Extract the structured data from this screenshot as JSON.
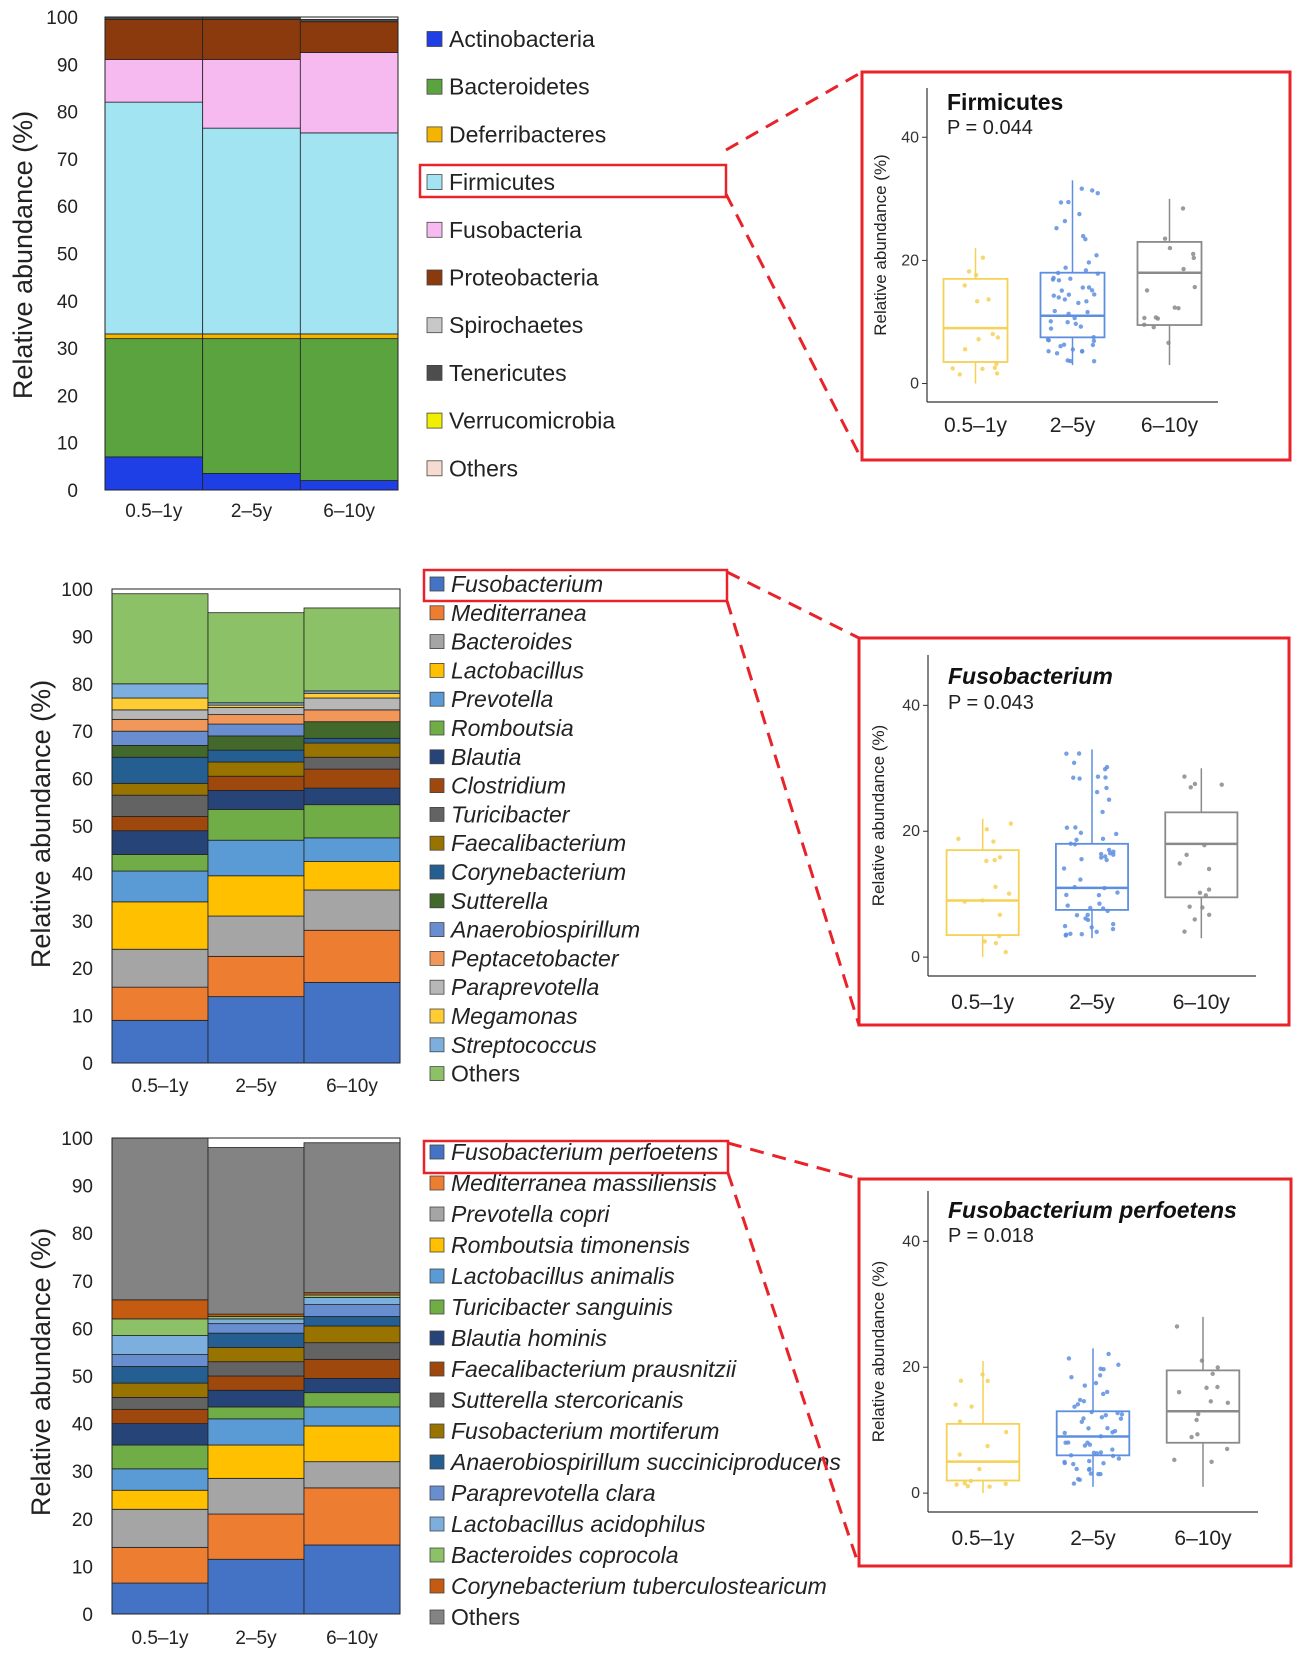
{
  "chart_data": [
    {
      "type": "bar",
      "stacked": true,
      "ylabel": "Relative abundance (%)",
      "ylim": [
        0,
        100
      ],
      "yticks": [
        0,
        10,
        20,
        30,
        40,
        50,
        60,
        70,
        80,
        90,
        100
      ],
      "legend_italic": false,
      "highlight_index": 3,
      "categories": [
        "0.5–1y",
        "2–5y",
        "6–10y"
      ],
      "series": [
        {
          "name": "Actinobacteria",
          "color": "#1f3fe6",
          "values": [
            7,
            3.5,
            2
          ]
        },
        {
          "name": "Bacteroidetes",
          "color": "#5aa33f",
          "values": [
            25,
            28.5,
            30
          ]
        },
        {
          "name": "Deferribacteres",
          "color": "#f5b400",
          "values": [
            1,
            1,
            1
          ]
        },
        {
          "name": "Firmicutes",
          "color": "#a3e4f2",
          "values": [
            49,
            43.5,
            42.5
          ]
        },
        {
          "name": "Fusobacteria",
          "color": "#f6baf0",
          "values": [
            9,
            14.5,
            17
          ]
        },
        {
          "name": "Proteobacteria",
          "color": "#8a3a0c",
          "values": [
            8.5,
            8.5,
            6.5
          ]
        },
        {
          "name": "Spirochaetes",
          "color": "#c8c8c8",
          "values": [
            0,
            0,
            0
          ]
        },
        {
          "name": "Tenericutes",
          "color": "#4d4d4d",
          "values": [
            0.5,
            0.5,
            0.5
          ]
        },
        {
          "name": "Verrucomicrobia",
          "color": "#f2ee00",
          "values": [
            0,
            0,
            0
          ]
        },
        {
          "name": "Others",
          "color": "#f6dcd0",
          "values": [
            0,
            0,
            0
          ]
        }
      ]
    },
    {
      "type": "bar",
      "stacked": true,
      "ylabel": "Relative abundance (%)",
      "ylim": [
        0,
        100
      ],
      "yticks": [
        0,
        10,
        20,
        30,
        40,
        50,
        60,
        70,
        80,
        90,
        100
      ],
      "legend_italic": true,
      "highlight_index": 0,
      "categories": [
        "0.5–1y",
        "2–5y",
        "6–10y"
      ],
      "series": [
        {
          "name": "Fusobacterium",
          "color": "#4472c4",
          "values": [
            9,
            14,
            17
          ]
        },
        {
          "name": "Mediterranea",
          "color": "#ed7d31",
          "values": [
            7,
            8.5,
            11
          ]
        },
        {
          "name": "Bacteroides",
          "color": "#a5a5a5",
          "values": [
            8,
            8.5,
            8.5
          ]
        },
        {
          "name": "Lactobacillus",
          "color": "#ffc000",
          "values": [
            10,
            8.5,
            6
          ]
        },
        {
          "name": "Prevotella",
          "color": "#5b9bd5",
          "values": [
            6.5,
            7.5,
            5
          ]
        },
        {
          "name": "Romboutsia",
          "color": "#70ad47",
          "values": [
            3.5,
            6.5,
            7
          ]
        },
        {
          "name": "Blautia",
          "color": "#264478",
          "values": [
            5,
            4,
            3.5
          ]
        },
        {
          "name": "Clostridium",
          "color": "#9e480e",
          "values": [
            3,
            3,
            4
          ]
        },
        {
          "name": "Turicibacter",
          "color": "#636363",
          "values": [
            4.5,
            0,
            2.5
          ]
        },
        {
          "name": "Faecalibacterium",
          "color": "#997300",
          "values": [
            2.5,
            3,
            3
          ]
        },
        {
          "name": "Corynebacterium",
          "color": "#255e91",
          "values": [
            5.5,
            2.5,
            1
          ]
        },
        {
          "name": "Sutterella",
          "color": "#43682b",
          "values": [
            2.5,
            3,
            3.5
          ]
        },
        {
          "name": "Anaerobiospirillum",
          "color": "#698ed0",
          "values": [
            3,
            2.5,
            0
          ]
        },
        {
          "name": "Peptacetobacter",
          "color": "#f1975a",
          "values": [
            2.5,
            2,
            2.5
          ]
        },
        {
          "name": "Paraprevotella",
          "color": "#b7b7b7",
          "values": [
            2,
            1.5,
            2.5
          ]
        },
        {
          "name": "Megamonas",
          "color": "#ffcd33",
          "values": [
            2.5,
            0.5,
            1
          ]
        },
        {
          "name": "Streptococcus",
          "color": "#7cafdd",
          "values": [
            3,
            0.5,
            0.5
          ]
        },
        {
          "name": "Others",
          "color": "#8cc168",
          "values": [
            19,
            19,
            17.5
          ]
        }
      ]
    },
    {
      "type": "bar",
      "stacked": true,
      "ylabel": "Relative abundance (%)",
      "ylim": [
        0,
        100
      ],
      "yticks": [
        0,
        10,
        20,
        30,
        40,
        50,
        60,
        70,
        80,
        90,
        100
      ],
      "legend_italic": true,
      "highlight_index": 0,
      "categories": [
        "0.5–1y",
        "2–5y",
        "6–10y"
      ],
      "series": [
        {
          "name": "Fusobacterium perfoetens",
          "color": "#4472c4",
          "values": [
            6.5,
            11.5,
            14.5
          ]
        },
        {
          "name": "Mediterranea massiliensis",
          "color": "#ed7d31",
          "values": [
            7.5,
            9.5,
            12
          ]
        },
        {
          "name": "Prevotella copri",
          "color": "#a5a5a5",
          "values": [
            8,
            7.5,
            5.5
          ]
        },
        {
          "name": "Romboutsia timonensis",
          "color": "#ffc000",
          "values": [
            4,
            7,
            7.5
          ]
        },
        {
          "name": "Lactobacillus animalis",
          "color": "#5b9bd5",
          "values": [
            4.5,
            5.5,
            4
          ]
        },
        {
          "name": "Turicibacter sanguinis",
          "color": "#70ad47",
          "values": [
            5,
            2.5,
            3
          ]
        },
        {
          "name": "Blautia hominis",
          "color": "#264478",
          "values": [
            4.5,
            3.5,
            3
          ]
        },
        {
          "name": "Faecalibacterium prausnitzii",
          "color": "#9e480e",
          "values": [
            3,
            3,
            4
          ]
        },
        {
          "name": "Sutterella stercoricanis",
          "color": "#636363",
          "values": [
            2.5,
            3,
            3.5
          ]
        },
        {
          "name": "Fusobacterium mortiferum",
          "color": "#997300",
          "values": [
            3,
            3,
            3.5
          ]
        },
        {
          "name": "Anaerobiospirillum succiniciproducens",
          "color": "#255e91",
          "values": [
            3.5,
            3,
            2
          ]
        },
        {
          "name": "Paraprevotella clara",
          "color": "#698ed0",
          "values": [
            2.5,
            2,
            2.5
          ]
        },
        {
          "name": "Lactobacillus acidophilus",
          "color": "#7cafdd",
          "values": [
            4,
            1,
            1.5
          ]
        },
        {
          "name": "Bacteroides coprocola",
          "color": "#8cc168",
          "values": [
            3.5,
            0.5,
            0.5
          ]
        },
        {
          "name": "Corynebacterium tuberculostearicum",
          "color": "#c55a11",
          "values": [
            4,
            0.5,
            0.5
          ]
        },
        {
          "name": "Others",
          "color": "#838383",
          "values": [
            34,
            35,
            31.5
          ]
        }
      ]
    },
    {
      "type": "box",
      "title": "Firmicutes",
      "title_italic": false,
      "pvalue": "P = 0.044",
      "ylabel": "Relative abundance (%)",
      "ylim": [
        -3,
        48
      ],
      "yticks": [
        0,
        20,
        40
      ],
      "categories": [
        "0.5–1y",
        "2–5y",
        "6–10y"
      ],
      "colors": [
        "#f5d156",
        "#5d8fe0",
        "#8a8a8a"
      ],
      "boxes": [
        {
          "min": 0,
          "q1": 3.5,
          "median": 9,
          "q3": 17,
          "max": 22
        },
        {
          "min": 3,
          "q1": 7.5,
          "median": 11,
          "q3": 18,
          "max": 33
        },
        {
          "min": 3,
          "q1": 9.5,
          "median": 18,
          "q3": 23,
          "max": 30
        }
      ]
    },
    {
      "type": "box",
      "title": "Fusobacterium",
      "title_italic": true,
      "pvalue": "P = 0.043",
      "ylabel": "Relative abundance (%)",
      "ylim": [
        -3,
        48
      ],
      "yticks": [
        0,
        20,
        40
      ],
      "categories": [
        "0.5–1y",
        "2–5y",
        "6–10y"
      ],
      "colors": [
        "#f5d156",
        "#5d8fe0",
        "#8a8a8a"
      ],
      "boxes": [
        {
          "min": 0,
          "q1": 3.5,
          "median": 9,
          "q3": 17,
          "max": 22
        },
        {
          "min": 3,
          "q1": 7.5,
          "median": 11,
          "q3": 18,
          "max": 33
        },
        {
          "min": 3,
          "q1": 9.5,
          "median": 18,
          "q3": 23,
          "max": 30
        }
      ]
    },
    {
      "type": "box",
      "title": "Fusobacterium perfoetens",
      "title_italic": true,
      "pvalue": "P = 0.018",
      "ylabel": "Relative abundance (%)",
      "ylim": [
        -3,
        48
      ],
      "yticks": [
        0,
        20,
        40
      ],
      "categories": [
        "0.5–1y",
        "2–5y",
        "6–10y"
      ],
      "colors": [
        "#f5d156",
        "#5d8fe0",
        "#8a8a8a"
      ],
      "boxes": [
        {
          "min": 0,
          "q1": 2,
          "median": 5,
          "q3": 11,
          "max": 21
        },
        {
          "min": 1,
          "q1": 6,
          "median": 9,
          "q3": 13,
          "max": 23
        },
        {
          "min": 1,
          "q1": 8,
          "median": 13,
          "q3": 19.5,
          "max": 28
        }
      ]
    }
  ]
}
